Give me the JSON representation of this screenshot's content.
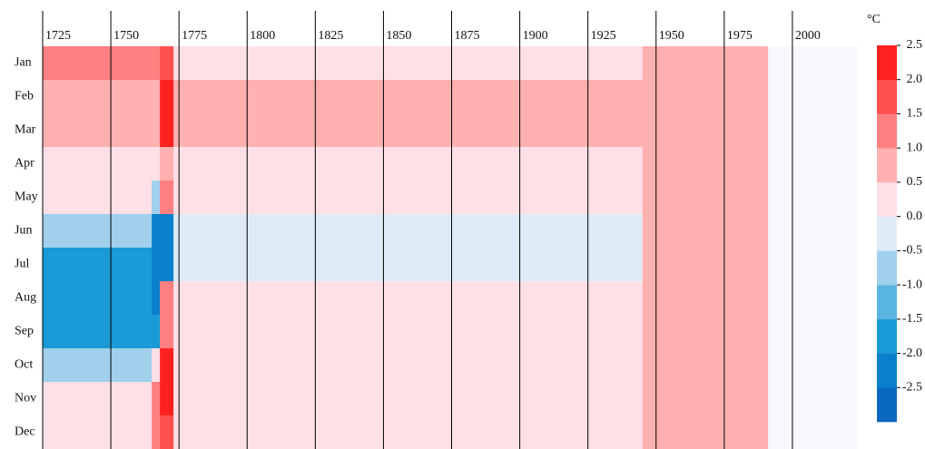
{
  "chart_data": {
    "type": "heatmap",
    "colorbar_title": "°C",
    "bins": [
      1725,
      1765,
      1768,
      1773,
      1850,
      1945,
      1991
    ],
    "xlim": [
      1725,
      2024
    ],
    "xticks": [
      1725,
      1750,
      1775,
      1800,
      1825,
      1850,
      1875,
      1900,
      1925,
      1950,
      1975,
      2000
    ],
    "categories": [
      "Jan",
      "Feb",
      "Mar",
      "Apr",
      "May",
      "Jun",
      "Jul",
      "Aug",
      "Sep",
      "Oct",
      "Nov",
      "Dec"
    ],
    "values": [
      [
        1.2,
        1.2,
        1.8,
        0.3,
        0.3,
        0.9
      ],
      [
        0.7,
        1.0,
        2.2,
        0.6,
        0.6,
        0.8
      ],
      [
        0.7,
        1.0,
        2.2,
        0.6,
        0.6,
        0.8
      ],
      [
        0.3,
        0.3,
        0.8,
        0.4,
        0.4,
        0.7
      ],
      [
        0.3,
        -0.7,
        1.2,
        0.05,
        0.1,
        0.7
      ],
      [
        -0.8,
        -2.2,
        -2.2,
        -0.2,
        -0.1,
        0.7
      ],
      [
        -1.8,
        -2.2,
        -2.2,
        -0.3,
        -0.1,
        0.7
      ],
      [
        -1.6,
        -2.2,
        1.2,
        0.2,
        0.2,
        0.7
      ],
      [
        -1.8,
        -1.8,
        1.2,
        0.2,
        0.2,
        0.7
      ],
      [
        -0.8,
        0.3,
        2.2,
        0.2,
        0.2,
        0.6
      ],
      [
        0.3,
        1.5,
        2.2,
        0.2,
        0.3,
        0.6
      ],
      [
        0.4,
        1.2,
        1.6,
        0.3,
        0.4,
        0.6
      ]
    ],
    "color_bounds": [
      -3,
      -2.5,
      -2,
      -1.5,
      -1,
      -0.5,
      0,
      0.5,
      1,
      1.5,
      2,
      2.5
    ],
    "colors": [
      "#0a68c0",
      "#0a7fcc",
      "#1a9ad6",
      "#5ab4e0",
      "#a0d0ec",
      "#deebf7",
      "#ffe0e6",
      "#ffb0b0",
      "#ff8080",
      "#ff5050",
      "#ff2020"
    ],
    "missing_color": "#f8f8fc",
    "cticks": [
      {
        "value": -2.5,
        "label": "-2.5"
      },
      {
        "value": -2,
        "label": "-2.0"
      },
      -1.5,
      {
        "value": -1,
        "label": "-1.0"
      },
      -0.5,
      {
        "value": 0,
        "label": "0.0"
      },
      0.5,
      {
        "value": 1,
        "label": "1.0"
      },
      1.5,
      {
        "value": 2,
        "label": "2.0"
      },
      2.5
    ]
  }
}
